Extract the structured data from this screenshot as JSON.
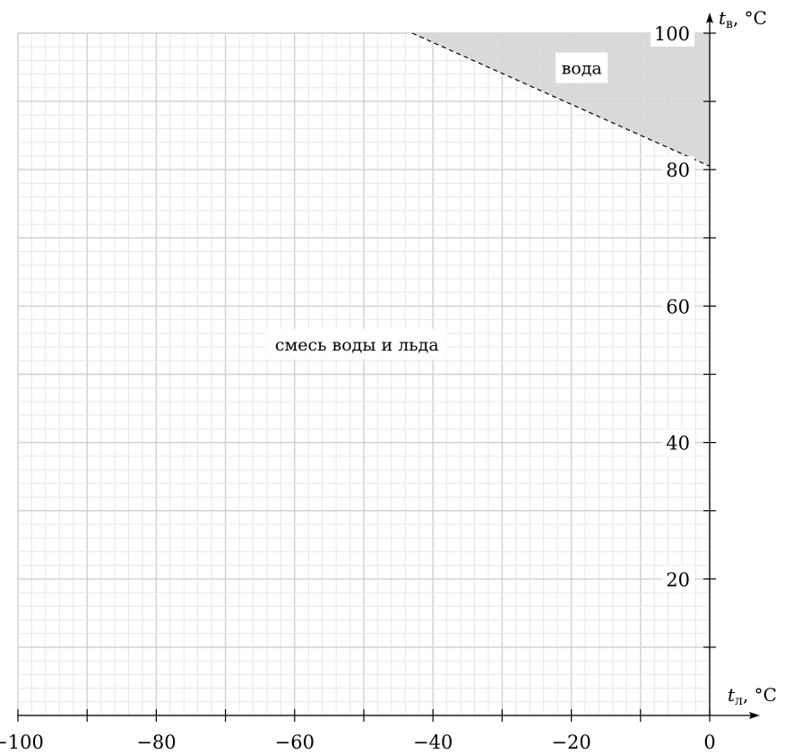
{
  "chart_data": {
    "type": "area",
    "x_axis": {
      "label_var": "t",
      "label_sub": "л",
      "label_unit": ", °C",
      "range": [
        -100,
        0
      ],
      "major_tick_step": 10,
      "tick_labels": [
        {
          "value": -100,
          "text": "−100"
        },
        {
          "value": -80,
          "text": "−80"
        },
        {
          "value": -60,
          "text": "−60"
        },
        {
          "value": -40,
          "text": "−40"
        },
        {
          "value": -20,
          "text": "−20"
        },
        {
          "value": 0,
          "text": "0"
        }
      ]
    },
    "y_axis": {
      "label_var": "t",
      "label_sub": "в",
      "label_unit": ", °C",
      "range": [
        0,
        100
      ],
      "major_tick_step": 10,
      "tick_labels": [
        {
          "value": 20,
          "text": "20"
        },
        {
          "value": 40,
          "text": "40"
        },
        {
          "value": 60,
          "text": "60"
        },
        {
          "value": 80,
          "text": "80"
        },
        {
          "value": 100,
          "text": "100"
        }
      ]
    },
    "grid": {
      "on": true,
      "minor_step": 2,
      "major_step": 10
    },
    "boundary_line": {
      "style": "dashed",
      "points": [
        [
          -43,
          100
        ],
        [
          0,
          80.5
        ]
      ]
    },
    "regions": [
      {
        "name": "вода",
        "fill": "#d6d6d6",
        "polygon": [
          [
            -43,
            100
          ],
          [
            0,
            100
          ],
          [
            0,
            80.5
          ]
        ],
        "label_at": [
          -18.5,
          94.8
        ]
      },
      {
        "name": "смесь воды и льда",
        "fill": "none",
        "label_at": [
          -51,
          54.3
        ]
      }
    ]
  }
}
